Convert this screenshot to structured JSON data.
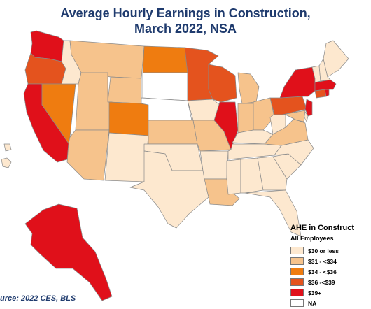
{
  "title": {
    "line1": "Average Hourly Earnings in Construction,",
    "line2": "March 2022, NSA"
  },
  "legend": {
    "title": "AHE in Construct",
    "subtitle": "All Employees",
    "items": [
      {
        "label": "$30 or less",
        "color": "#fde8cf"
      },
      {
        "label": "$31 - <$34",
        "color": "#f6c38c"
      },
      {
        "label": "$34 - <$36",
        "color": "#ef7c10"
      },
      {
        "label": "$36 -<$39",
        "color": "#e4531e"
      },
      {
        "label": "$39+",
        "color": "#e0101a"
      },
      {
        "label": "NA",
        "color": "#ffffff"
      }
    ]
  },
  "source": "urce: 2022 CES, BLS",
  "states": {
    "WA": 4,
    "OR": 3,
    "CA": 4,
    "NV": 2,
    "ID": 0,
    "MT": 1,
    "WY": 1,
    "UT": 1,
    "AZ": 1,
    "CO": 2,
    "NM": 0,
    "ND": 2,
    "SD": 5,
    "NE": 5,
    "KS": 1,
    "OK": 0,
    "TX": 0,
    "MN": 3,
    "IA": 0,
    "MO": 1,
    "AR": 0,
    "LA": 1,
    "WI": 3,
    "IL": 4,
    "MI": 1,
    "IN": 1,
    "OH": 1,
    "KY": 0,
    "TN": 0,
    "MS": 0,
    "AL": 0,
    "GA": 0,
    "FL": 0,
    "SC": 0,
    "NC": 0,
    "VA": 1,
    "WV": 0,
    "PA": 3,
    "NY": 4,
    "NJ": 4,
    "DE": 0,
    "MD": 1,
    "CT": 3,
    "RI": 4,
    "MA": 4,
    "VT": 0,
    "NH": 0,
    "ME": 0,
    "AK": 4,
    "HI": 0
  }
}
